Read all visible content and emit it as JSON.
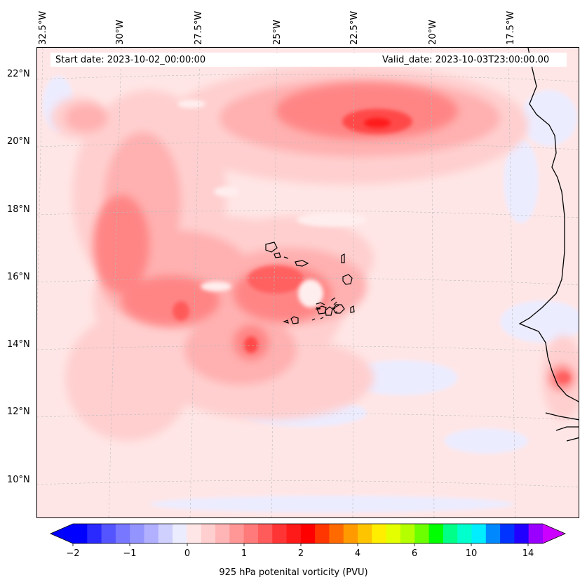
{
  "header": {
    "start_date": "Start date: 2023-10-02_00:00:00",
    "valid_date": "Valid_date: 2023-10-03T23:00:00.00"
  },
  "longitude_labels": [
    "32.5°W",
    "30°W",
    "27.5°W",
    "25°W",
    "22.5°W",
    "20°W",
    "17.5°W"
  ],
  "latitude_labels": [
    "22°N",
    "20°N",
    "18°N",
    "16°N",
    "14°N",
    "12°N",
    "10°N"
  ],
  "colorbar": {
    "title": "925 hPa potenital vorticity (PVU)",
    "tick_labels": [
      "−2",
      "−1",
      "0",
      "1",
      "2",
      "4",
      "6",
      "10",
      "14"
    ],
    "colors": [
      "#0000ff",
      "#2a2aff",
      "#5555ff",
      "#7777ff",
      "#9494ff",
      "#b0b0ff",
      "#d0d0ff",
      "#ececff",
      "#ffe6e6",
      "#ffcfcf",
      "#ffb5b5",
      "#ff9797",
      "#ff7a7a",
      "#ff5b5b",
      "#ff3535",
      "#ff1a1a",
      "#ff0000",
      "#ff3600",
      "#ff6a00",
      "#ff9a00",
      "#ffc400",
      "#ffee00",
      "#e4ff00",
      "#b4ff00",
      "#6cff00",
      "#00ff00",
      "#00ff88",
      "#00ffcc",
      "#00eeff",
      "#0088ff",
      "#0033ff",
      "#2200ff",
      "#9900ff"
    ],
    "extend_min_color": "#0000ff",
    "extend_max_color": "#cc00ff"
  },
  "colors": {
    "background_pv": "#ffe6e6",
    "strong_max": "#ff1a1a"
  }
}
